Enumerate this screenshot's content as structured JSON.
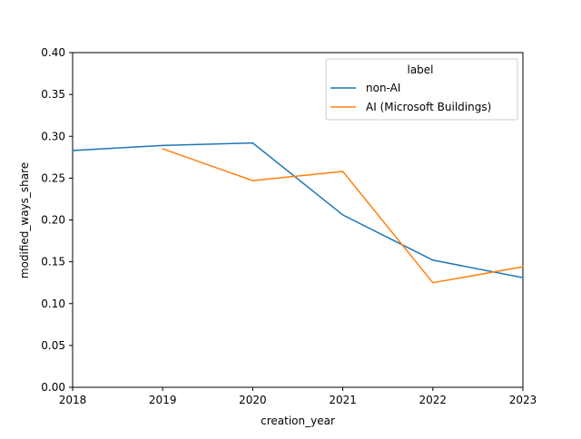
{
  "chart_data": {
    "type": "line",
    "title": "",
    "xlabel": "creation_year",
    "ylabel": "modified_ways_share",
    "xlim": [
      2018,
      2023
    ],
    "ylim": [
      0.0,
      0.4
    ],
    "x_ticks": [
      2018,
      2019,
      2020,
      2021,
      2022,
      2023
    ],
    "y_ticks": [
      0.0,
      0.05,
      0.1,
      0.15,
      0.2,
      0.25,
      0.3,
      0.35,
      0.4
    ],
    "x_tick_labels": [
      "2018",
      "2019",
      "2020",
      "2021",
      "2022",
      "2023"
    ],
    "y_tick_labels": [
      "0.00",
      "0.05",
      "0.10",
      "0.15",
      "0.20",
      "0.25",
      "0.30",
      "0.35",
      "0.40"
    ],
    "grid": false,
    "legend": {
      "title": "label",
      "placement": "top-right"
    },
    "series": [
      {
        "name": "non-AI",
        "color": "#1f77b4",
        "x": [
          2018,
          2019,
          2020,
          2021,
          2022,
          2023
        ],
        "y": [
          0.283,
          0.289,
          0.292,
          0.206,
          0.152,
          0.131
        ]
      },
      {
        "name": "AI (Microsoft Buildings)",
        "color": "#ff7f0e",
        "x": [
          2019,
          2020,
          2021,
          2022,
          2023
        ],
        "y": [
          0.285,
          0.247,
          0.258,
          0.125,
          0.144
        ]
      }
    ]
  }
}
